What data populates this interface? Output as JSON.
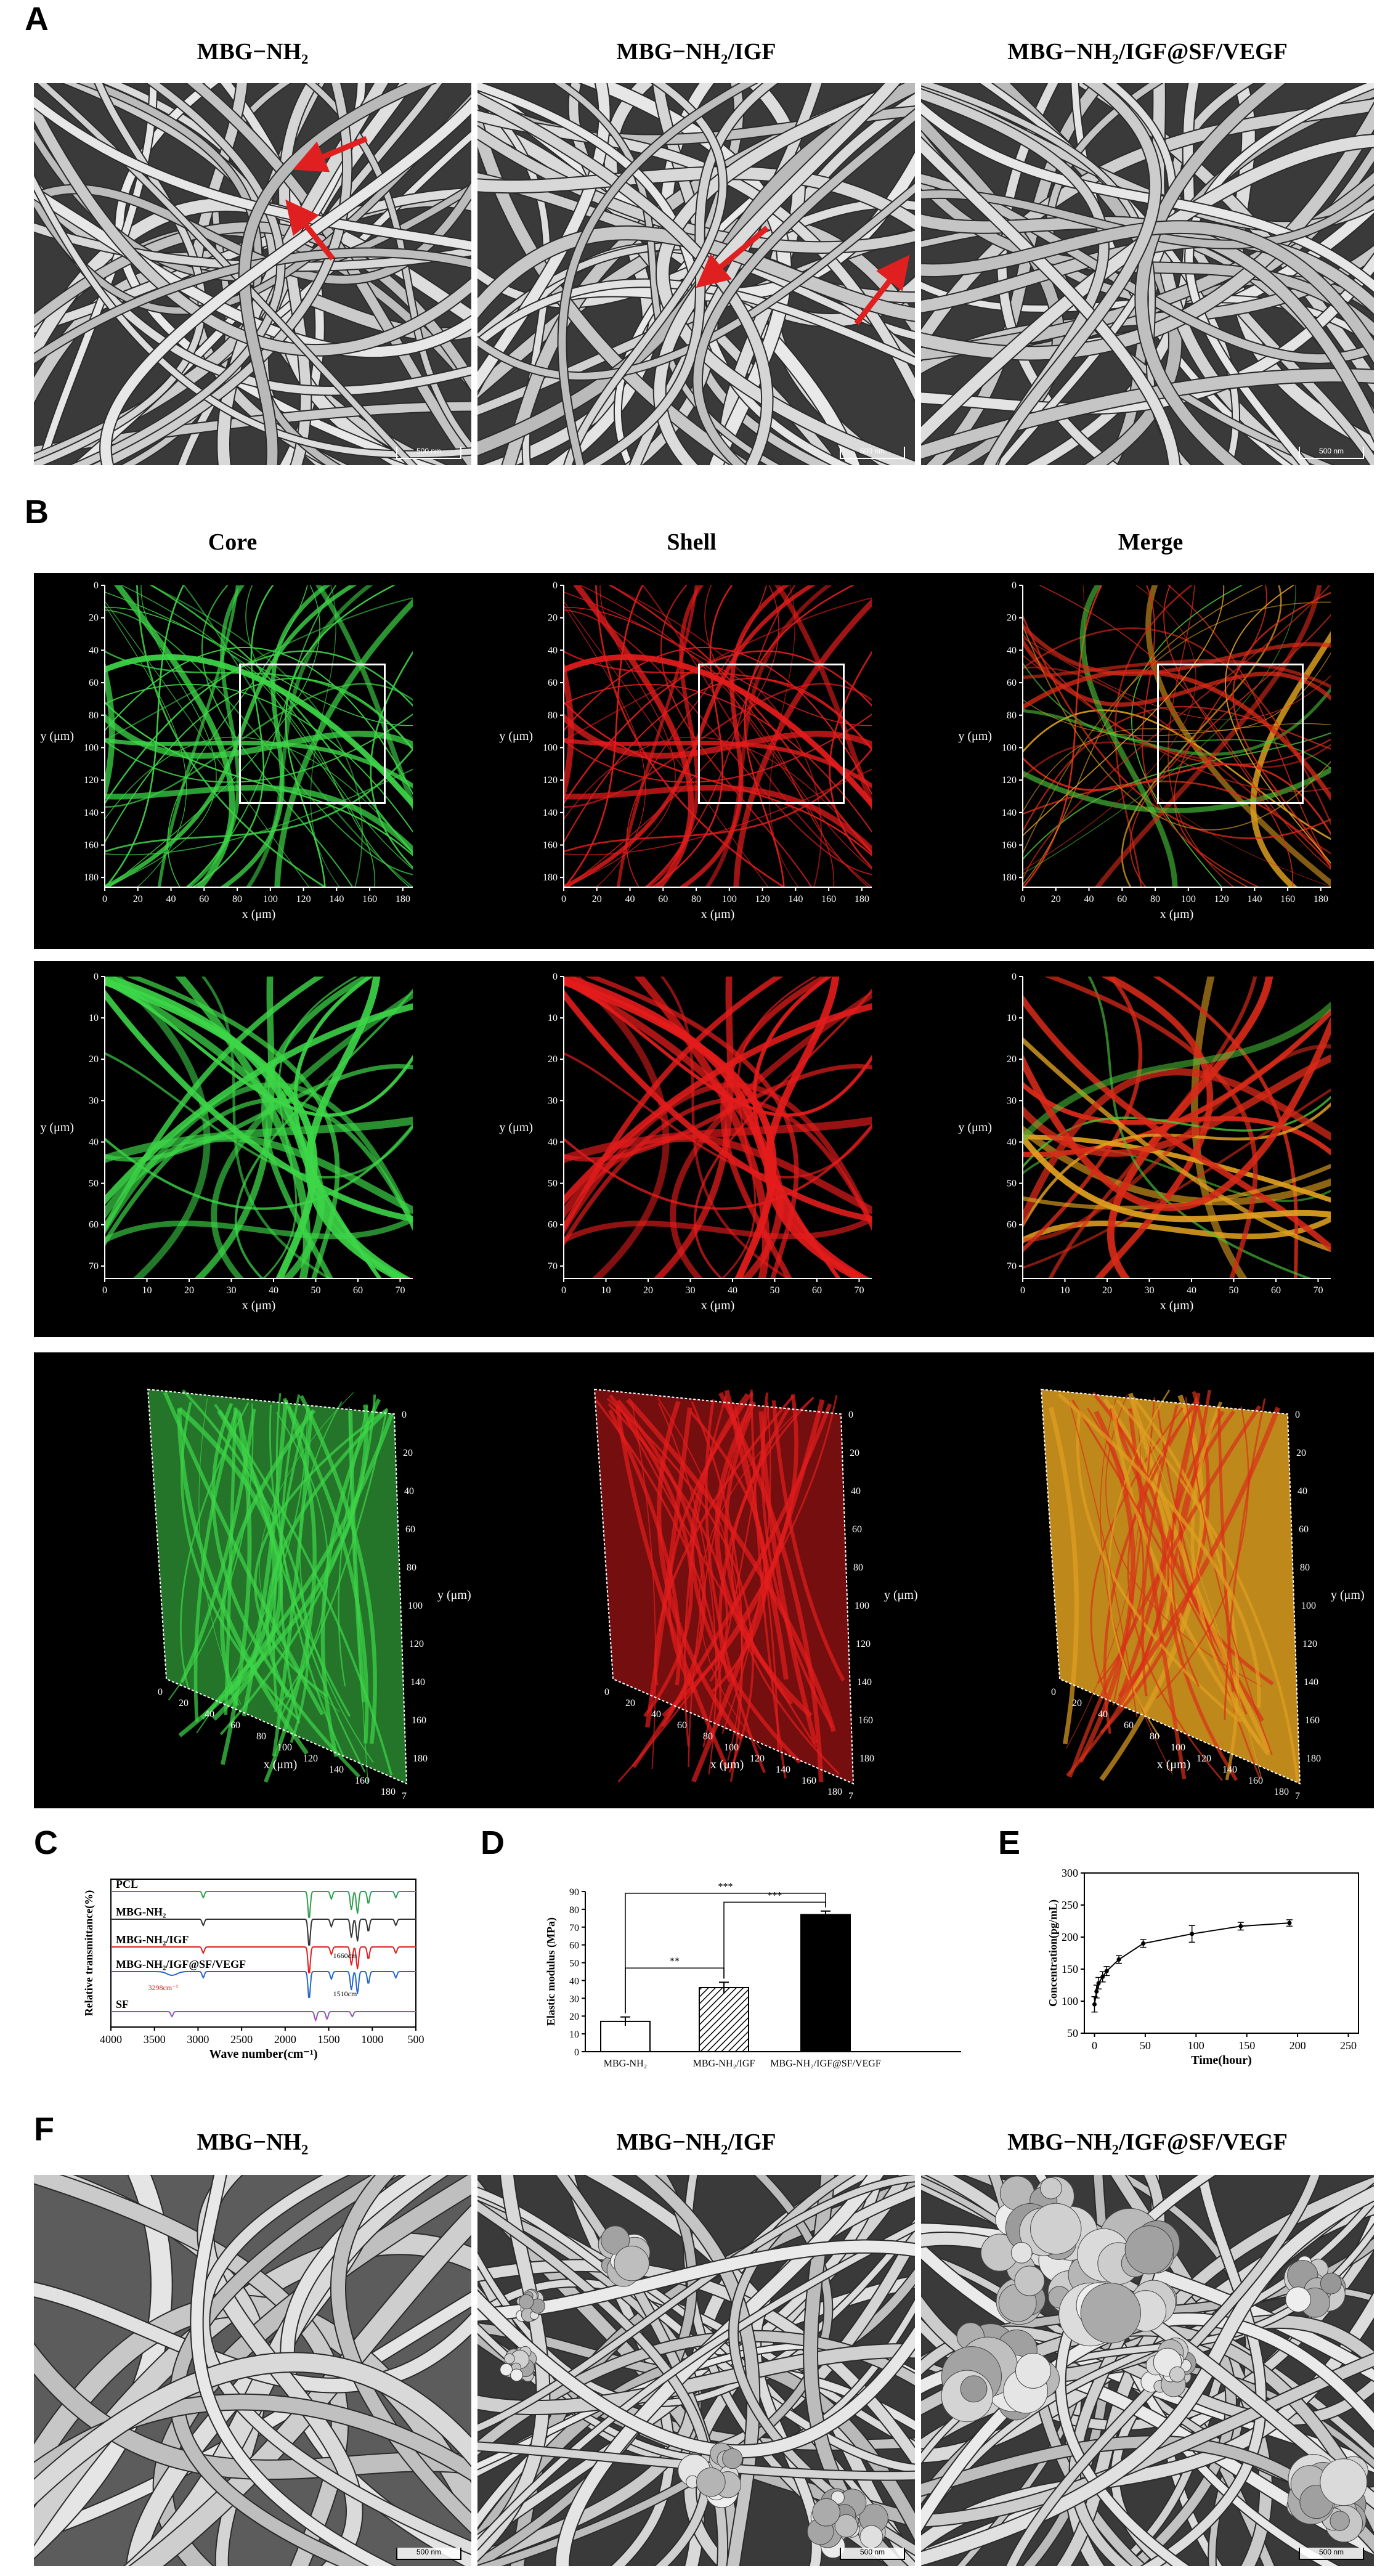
{
  "panels": {
    "a": {
      "letter": "A",
      "titles": [
        "MBG−NH₂",
        "MBG−NH₂/IGF",
        "MBG−NH₂/IGF@SF/VEGF"
      ],
      "scale_labels": [
        "500 nm",
        "500 nm",
        "500 nm"
      ]
    },
    "b": {
      "letter": "B",
      "titles": [
        "Core",
        "Shell",
        "Merge"
      ],
      "row1": {
        "ylabel": "y (μm)",
        "xlabel": "x (μm)",
        "yticks": [
          "0",
          "20",
          "40",
          "60",
          "80",
          "100",
          "120",
          "140",
          "160",
          "180"
        ],
        "xticks": [
          "0",
          "20",
          "40",
          "60",
          "80",
          "100",
          "120",
          "140",
          "160",
          "180"
        ]
      },
      "row2": {
        "ylabel": "y (μm)",
        "xlabel": "x (μm)",
        "yticks": [
          "0",
          "10",
          "20",
          "30",
          "40",
          "50",
          "60",
          "70"
        ],
        "xticks": [
          "0",
          "10",
          "20",
          "30",
          "40",
          "50",
          "60",
          "70"
        ]
      },
      "row3": {
        "ylabel": "y (μm)",
        "xlabel": "x (μm)",
        "zlabel": "z (μm)",
        "yticks": [
          "0",
          "20",
          "40",
          "60",
          "80",
          "100",
          "120",
          "140",
          "160",
          "180"
        ],
        "xticks": [
          "0",
          "20",
          "40",
          "60",
          "80",
          "100",
          "120",
          "140",
          "160",
          "180"
        ],
        "ztick": "7"
      }
    },
    "c": {
      "letter": "C"
    },
    "d": {
      "letter": "D"
    },
    "e": {
      "letter": "E"
    },
    "f": {
      "letter": "F",
      "titles": [
        "MBG−NH₂",
        "MBG−NH₂/IGF",
        "MBG−NH₂/IGF@SF/VEGF"
      ],
      "scale_labels": [
        "500 nm",
        "500 nm",
        "500 nm"
      ]
    }
  },
  "colors": {
    "core": "#2fbf3a",
    "shell": "#e01616",
    "arrow": "#e02020"
  },
  "chart_data": [
    {
      "id": "C",
      "type": "line",
      "xlabel": "Wave number(cm⁻¹)",
      "ylabel": "Relative transmittance(%)",
      "xticks": [
        4000,
        3500,
        3000,
        2500,
        2000,
        1500,
        1000,
        500
      ],
      "xlim": [
        4000,
        500
      ],
      "x_reversed": true,
      "series": [
        {
          "name": "PCL",
          "color": "#2e9e4a"
        },
        {
          "name": "MBG-NH₂",
          "color": "#333333"
        },
        {
          "name": "MBG-NH₂/IGF",
          "color": "#e02020"
        },
        {
          "name": "MBG-NH₂/IGF@SF/VEGF",
          "color": "#2266c8"
        },
        {
          "name": "SF",
          "color": "#9b4fb5"
        }
      ],
      "annotations": [
        "3298cm⁻¹",
        "1660cm",
        "1510cm"
      ]
    },
    {
      "id": "D",
      "type": "bar",
      "ylabel": "Elastic modulus (MPa)",
      "categories": [
        "MBG-NH₂",
        "MBG-NH₂/IGF",
        "MBG-NH₂/IGF@SF/VEGF"
      ],
      "values": [
        17,
        36,
        77
      ],
      "errors": [
        2.5,
        3,
        2
      ],
      "ylim": [
        0,
        90
      ],
      "yticks": [
        0,
        10,
        20,
        30,
        40,
        50,
        60,
        70,
        80,
        90
      ],
      "fills": [
        "white",
        "hatch",
        "black"
      ],
      "significance": [
        "**",
        "***",
        "***"
      ]
    },
    {
      "id": "E",
      "type": "line",
      "xlabel": "Time(hour)",
      "ylabel": "Concentration(pg/mL)",
      "x": [
        0,
        2,
        4,
        8,
        12,
        24,
        48,
        96,
        144,
        192
      ],
      "values": [
        95,
        115,
        128,
        138,
        147,
        165,
        190,
        205,
        217,
        222
      ],
      "errors": [
        12,
        10,
        9,
        8,
        7,
        6,
        6,
        13,
        6,
        5
      ],
      "xlim": [
        -10,
        260
      ],
      "ylim": [
        50,
        300
      ],
      "xticks": [
        0,
        50,
        100,
        150,
        200,
        250
      ],
      "yticks": [
        50,
        100,
        150,
        200,
        250,
        300
      ]
    }
  ]
}
